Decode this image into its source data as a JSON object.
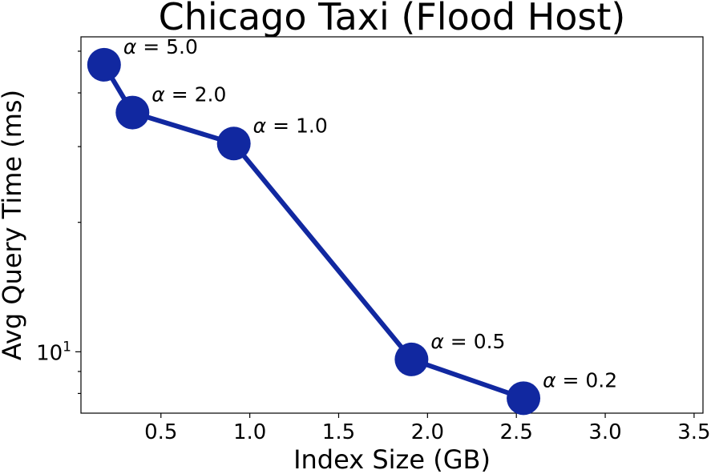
{
  "chart_data": {
    "type": "line",
    "title": "Chicago Taxi (Flood Host)",
    "xlabel": "Index Size (GB)",
    "ylabel": "Avg Query Time (ms)",
    "xlim": [
      0.05,
      3.55
    ],
    "ylim": [
      7.2,
      54
    ],
    "yscale": "log",
    "xticks": [
      {
        "value": 0.5,
        "label": "0.5"
      },
      {
        "value": 1.0,
        "label": "1.0"
      },
      {
        "value": 1.5,
        "label": "1.5"
      },
      {
        "value": 2.0,
        "label": "2.0"
      },
      {
        "value": 2.5,
        "label": "2.5"
      },
      {
        "value": 3.0,
        "label": "3.0"
      },
      {
        "value": 3.5,
        "label": "3.5"
      }
    ],
    "yticks_major": [
      {
        "value": 10,
        "base": "10",
        "exp": "1"
      }
    ],
    "yticks_minor": [
      8,
      9,
      20,
      30,
      40,
      50
    ],
    "grid": false,
    "color": "#1128a0",
    "series": [
      {
        "x": [
          0.18,
          0.34,
          0.91,
          1.91,
          2.54
        ],
        "y": [
          46.5,
          36.0,
          30.5,
          9.6,
          7.8
        ],
        "labels": [
          {
            "greek": "α",
            "text": " = 5.0"
          },
          {
            "greek": "α",
            "text": " = 2.0"
          },
          {
            "greek": "α",
            "text": " = 1.0"
          },
          {
            "greek": "α",
            "text": " = 0.5"
          },
          {
            "greek": "α",
            "text": " = 0.2"
          }
        ]
      }
    ]
  }
}
